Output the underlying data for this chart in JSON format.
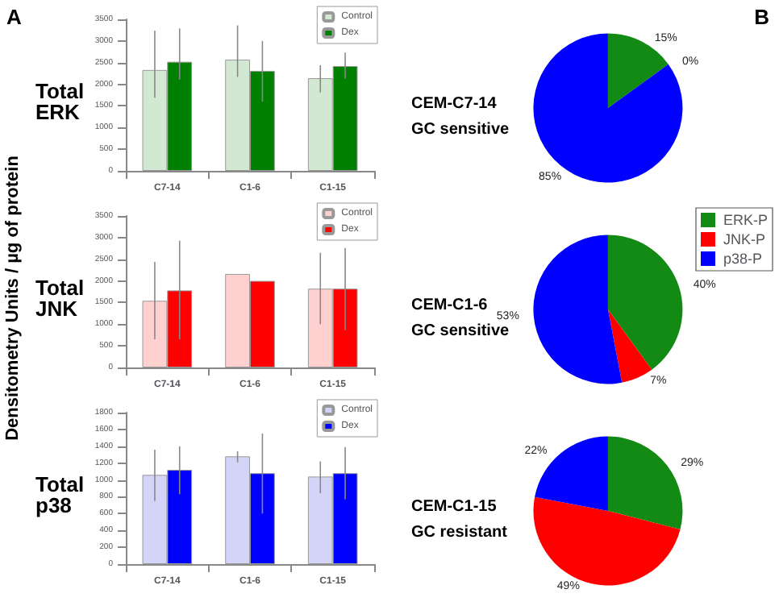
{
  "chart_data": [
    {
      "type": "bar",
      "title": "Total ERK",
      "annotations": [
        "A"
      ],
      "categories": [
        "C7-14",
        "C1-6",
        "C1-15"
      ],
      "ylim": [
        0,
        3500
      ],
      "yticks": [
        0,
        500,
        1000,
        1500,
        2000,
        2500,
        3000,
        3500
      ],
      "grid": false,
      "legend": "top right",
      "series": [
        {
          "name": "Control",
          "color": "#d3e8d3",
          "values": [
            2330,
            2570,
            2140
          ],
          "errors": [
            [
              1690,
              3240
            ],
            [
              2170,
              3360
            ],
            [
              1810,
              2440
            ]
          ]
        },
        {
          "name": "Dex",
          "color": "#008000",
          "values": [
            2520,
            2310,
            2420
          ],
          "errors": [
            [
              2110,
              3290
            ],
            [
              1600,
              3000
            ],
            [
              2130,
              2730
            ]
          ]
        }
      ]
    },
    {
      "type": "bar",
      "title": "Total JNK",
      "ylabel": "Densitometry Units / µg of protein",
      "categories": [
        "C7-14",
        "C1-6",
        "C1-15"
      ],
      "ylim": [
        0,
        3500
      ],
      "yticks": [
        0,
        500,
        1000,
        1500,
        2000,
        2500,
        3000,
        3500
      ],
      "grid": false,
      "legend": "top right",
      "series": [
        {
          "name": "Control",
          "color": "#ffd0d0",
          "values": [
            1540,
            2160,
            1820
          ],
          "errors": [
            [
              650,
              2440
            ],
            null,
            [
              1000,
              2650
            ]
          ]
        },
        {
          "name": "Dex",
          "color": "#ff0000",
          "values": [
            1780,
            2000,
            1820
          ],
          "errors": [
            [
              650,
              2930
            ],
            null,
            [
              860,
              2760
            ]
          ]
        }
      ]
    },
    {
      "type": "bar",
      "title": "Total p38",
      "categories": [
        "C7-14",
        "C1-6",
        "C1-15"
      ],
      "ylim": [
        0,
        1800
      ],
      "yticks": [
        0,
        200,
        400,
        600,
        800,
        1000,
        1200,
        1400,
        1600,
        1800
      ],
      "grid": false,
      "legend": "top right",
      "series": [
        {
          "name": "Control",
          "color": "#d4d4f8",
          "values": [
            1060,
            1280,
            1040
          ],
          "errors": [
            [
              750,
              1360
            ],
            [
              1210,
              1340
            ],
            [
              840,
              1220
            ]
          ]
        },
        {
          "name": "Dex",
          "color": "#0000ff",
          "values": [
            1120,
            1080,
            1080
          ],
          "errors": [
            [
              830,
              1400
            ],
            [
              600,
              1550
            ],
            [
              770,
              1390
            ]
          ]
        }
      ]
    },
    {
      "type": "pie",
      "title": "CEM-C7-14",
      "subtitle": "GC sensitive",
      "annotations": [
        "B"
      ],
      "categories": [
        null,
        null,
        null
      ],
      "values": [
        15,
        0,
        85
      ],
      "colors": [
        "#138a13",
        "#ff0000",
        "#0000ff"
      ],
      "legend": false,
      "value_labels": [
        "15%",
        "0%",
        "85%"
      ]
    },
    {
      "type": "pie",
      "title": "CEM-C1-6",
      "subtitle": "GC sensitive",
      "categories": [
        "ERK-P",
        "JNK-P",
        "p38-P"
      ],
      "values": [
        40,
        7,
        53
      ],
      "colors": [
        "#138a13",
        "#ff0000",
        "#0000ff"
      ],
      "legend": "top right",
      "value_labels": [
        "40%",
        "7%",
        "53%"
      ]
    },
    {
      "type": "pie",
      "title": "CEM-C1-15",
      "subtitle": "GC resistant",
      "categories": [
        null,
        null,
        null
      ],
      "values": [
        29,
        49,
        22
      ],
      "colors": [
        "#138a13",
        "#ff0000",
        "#0000ff"
      ],
      "legend": false,
      "value_labels": [
        "29%",
        "49%",
        "22%"
      ]
    }
  ]
}
